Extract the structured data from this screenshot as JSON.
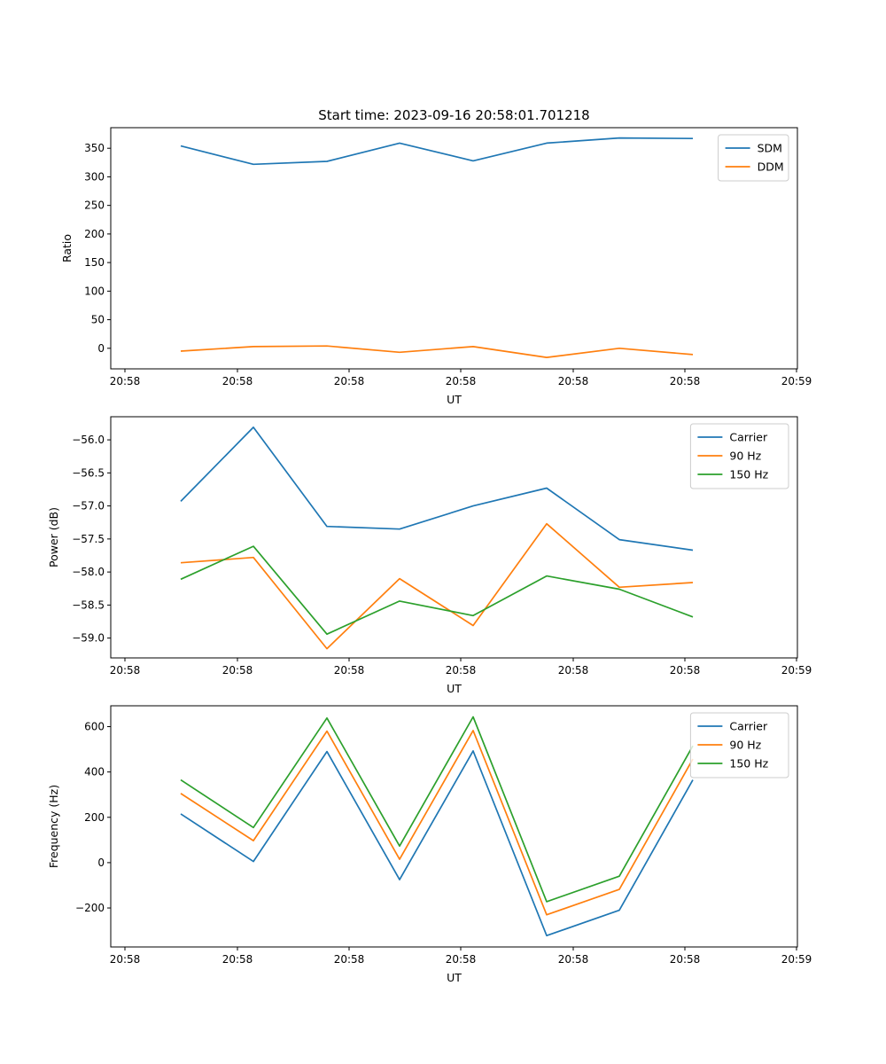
{
  "figure_title": "Start time: 2023-09-16 20:58:01.701218",
  "chart_data": [
    {
      "type": "line",
      "title": "Start time: 2023-09-16 20:58:01.701218",
      "xlabel": "UT",
      "ylabel": "Ratio",
      "x_tick_labels": [
        "20:58",
        "20:58",
        "20:58",
        "20:58",
        "20:58",
        "20:58",
        "20:59"
      ],
      "x_points": 8,
      "ylim": [
        -36,
        386
      ],
      "y_ticks": [
        0,
        50,
        100,
        150,
        200,
        250,
        300,
        350
      ],
      "y_tick_labels": [
        "0",
        "50",
        "100",
        "150",
        "200",
        "250",
        "300",
        "350"
      ],
      "legend_position": "top-right",
      "series": [
        {
          "name": "SDM",
          "color": "#1f77b4",
          "values": [
            354,
            322,
            327,
            359,
            328,
            359,
            368,
            367
          ]
        },
        {
          "name": "DDM",
          "color": "#ff7f0e",
          "values": [
            -5,
            3,
            4,
            -7,
            3,
            -16,
            0,
            -11
          ]
        }
      ]
    },
    {
      "type": "line",
      "title": "",
      "xlabel": "UT",
      "ylabel": "Power (dB)",
      "x_tick_labels": [
        "20:58",
        "20:58",
        "20:58",
        "20:58",
        "20:58",
        "20:58",
        "20:59"
      ],
      "x_points": 8,
      "ylim": [
        -59.3,
        -55.65
      ],
      "y_ticks": [
        -59.0,
        -58.5,
        -58.0,
        -57.5,
        -57.0,
        -56.5,
        -56.0
      ],
      "y_tick_labels": [
        "−59.0",
        "−58.5",
        "−58.0",
        "−57.5",
        "−57.0",
        "−56.5",
        "−56.0"
      ],
      "legend_position": "top-right",
      "series": [
        {
          "name": "Carrier",
          "color": "#1f77b4",
          "values": [
            -56.93,
            -55.81,
            -57.31,
            -57.35,
            -57.0,
            -56.73,
            -57.51,
            -57.67
          ]
        },
        {
          "name": "90 Hz",
          "color": "#ff7f0e",
          "values": [
            -57.86,
            -57.78,
            -59.16,
            -58.1,
            -58.81,
            -57.27,
            -58.23,
            -58.16
          ]
        },
        {
          "name": "150 Hz",
          "color": "#2ca02c",
          "values": [
            -58.11,
            -57.61,
            -58.94,
            -58.44,
            -58.66,
            -58.06,
            -58.26,
            -58.68
          ]
        }
      ]
    },
    {
      "type": "line",
      "title": "",
      "xlabel": "UT",
      "ylabel": "Frequency (Hz)",
      "x_tick_labels": [
        "20:58",
        "20:58",
        "20:58",
        "20:58",
        "20:58",
        "20:58",
        "20:59"
      ],
      "x_points": 8,
      "ylim": [
        -372,
        692
      ],
      "y_ticks": [
        -200,
        0,
        200,
        400,
        600
      ],
      "y_tick_labels": [
        "−200",
        "0",
        "200",
        "400",
        "600"
      ],
      "legend_position": "top-right",
      "series": [
        {
          "name": "Carrier",
          "color": "#1f77b4",
          "values": [
            215,
            5,
            490,
            -75,
            493,
            -322,
            -210,
            365
          ]
        },
        {
          "name": "90 Hz",
          "color": "#ff7f0e",
          "values": [
            305,
            97,
            580,
            15,
            583,
            -230,
            -118,
            457
          ]
        },
        {
          "name": "150 Hz",
          "color": "#2ca02c",
          "values": [
            365,
            155,
            638,
            73,
            643,
            -172,
            -60,
            515
          ]
        }
      ]
    }
  ]
}
